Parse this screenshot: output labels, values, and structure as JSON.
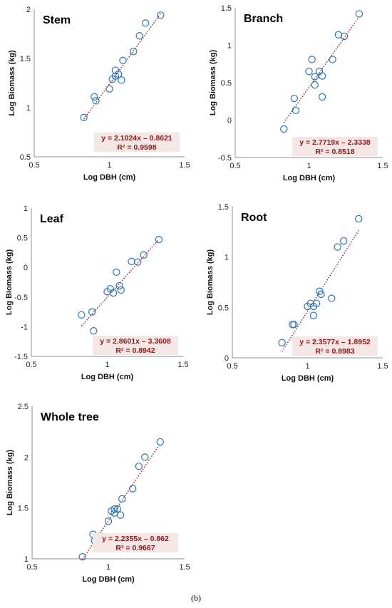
{
  "figure": {
    "caption": "(b)"
  },
  "colors": {
    "marker": "#2e75b6",
    "trendline": "#8b1a1a",
    "equation_text": "#8b1a1a",
    "equation_bg": "#f5e6e6",
    "axis": "#8c8c8c"
  },
  "chart_data": [
    {
      "type": "scatter",
      "title": "Stem",
      "xlabel": "Log DBH (cm)",
      "ylabel": "Log Biomass (kg)",
      "xlim": [
        0.5,
        1.5
      ],
      "ylim": [
        0.5,
        2
      ],
      "xticks": [
        "0.5",
        "1",
        "1.5"
      ],
      "yticks": [
        "0.5",
        "1",
        "1.5",
        "2"
      ],
      "grid": false,
      "trendline": {
        "slope": 2.1024,
        "intercept": -0.8621
      },
      "equation": "y = 2.1024x – 0.8621",
      "r2": "R² = 0.9598",
      "points": [
        {
          "x": 0.83,
          "y": 0.9
        },
        {
          "x": 0.9,
          "y": 1.11
        },
        {
          "x": 0.91,
          "y": 1.07
        },
        {
          "x": 1.0,
          "y": 1.19
        },
        {
          "x": 1.02,
          "y": 1.29
        },
        {
          "x": 1.04,
          "y": 1.32
        },
        {
          "x": 1.04,
          "y": 1.38
        },
        {
          "x": 1.06,
          "y": 1.34
        },
        {
          "x": 1.08,
          "y": 1.28
        },
        {
          "x": 1.09,
          "y": 1.48
        },
        {
          "x": 1.16,
          "y": 1.57
        },
        {
          "x": 1.2,
          "y": 1.73
        },
        {
          "x": 1.24,
          "y": 1.86
        },
        {
          "x": 1.34,
          "y": 1.94
        }
      ]
    },
    {
      "type": "scatter",
      "title": "Branch",
      "xlabel": "Log DBH (cm)",
      "ylabel": "Log Biomass (kg)",
      "xlim": [
        0.5,
        1.5
      ],
      "ylim": [
        -0.5,
        1.5
      ],
      "xticks": [
        "0.5",
        "1",
        "1.5"
      ],
      "yticks": [
        "-0.5",
        "0",
        "0.5",
        "1",
        "1.5"
      ],
      "grid": false,
      "trendline": {
        "slope": 2.7719,
        "intercept": -2.3338
      },
      "equation": "y = 2.7719x – 2.3338",
      "r2": "R² = 0.8518",
      "points": [
        {
          "x": 0.83,
          "y": -0.12
        },
        {
          "x": 0.9,
          "y": 0.29
        },
        {
          "x": 0.91,
          "y": 0.13
        },
        {
          "x": 1.0,
          "y": 0.65
        },
        {
          "x": 1.02,
          "y": 0.81
        },
        {
          "x": 1.04,
          "y": 0.58
        },
        {
          "x": 1.04,
          "y": 0.47
        },
        {
          "x": 1.07,
          "y": 0.65
        },
        {
          "x": 1.09,
          "y": 0.59
        },
        {
          "x": 1.09,
          "y": 0.31
        },
        {
          "x": 1.16,
          "y": 0.81
        },
        {
          "x": 1.2,
          "y": 1.14
        },
        {
          "x": 1.24,
          "y": 1.12
        },
        {
          "x": 1.34,
          "y": 1.42
        }
      ]
    },
    {
      "type": "scatter",
      "title": "Leaf",
      "xlabel": "Log DBH (cm)",
      "ylabel": "Log Biomass (kg)",
      "xlim": [
        0.5,
        1.5
      ],
      "ylim": [
        -1.5,
        1
      ],
      "xticks": [
        "0.5",
        "1",
        "1.5"
      ],
      "yticks": [
        "-1.5",
        "-1",
        "-0.5",
        "0",
        "0.5",
        "1"
      ],
      "grid": false,
      "trendline": {
        "slope": 2.8601,
        "intercept": -3.3608
      },
      "equation": "y = 2.8601x – 3.3608",
      "r2": "R² = 0.8942",
      "points": [
        {
          "x": 0.83,
          "y": -0.8
        },
        {
          "x": 0.9,
          "y": -0.75
        },
        {
          "x": 0.91,
          "y": -1.07
        },
        {
          "x": 1.0,
          "y": -0.41
        },
        {
          "x": 1.02,
          "y": -0.36
        },
        {
          "x": 1.04,
          "y": -0.43
        },
        {
          "x": 1.06,
          "y": -0.08
        },
        {
          "x": 1.08,
          "y": -0.31
        },
        {
          "x": 1.09,
          "y": -0.38
        },
        {
          "x": 1.16,
          "y": 0.1
        },
        {
          "x": 1.2,
          "y": 0.09
        },
        {
          "x": 1.24,
          "y": 0.21
        },
        {
          "x": 1.34,
          "y": 0.47
        }
      ]
    },
    {
      "type": "scatter",
      "title": "Root",
      "xlabel": "Log DBH (cm)",
      "ylabel": "Log Biomass (kg)",
      "xlim": [
        0.5,
        1.5
      ],
      "ylim": [
        0,
        1.5
      ],
      "xticks": [
        "0.5",
        "1",
        "1.5"
      ],
      "yticks": [
        "0",
        "0.5",
        "1",
        "1.5"
      ],
      "grid": false,
      "trendline": {
        "slope": 2.3577,
        "intercept": -1.8952
      },
      "equation": "y = 2.3577x – 1.8952",
      "r2": "R² = 0.8983",
      "points": [
        {
          "x": 0.83,
          "y": 0.15
        },
        {
          "x": 0.9,
          "y": 0.33
        },
        {
          "x": 0.91,
          "y": 0.33
        },
        {
          "x": 1.0,
          "y": 0.51
        },
        {
          "x": 1.02,
          "y": 0.54
        },
        {
          "x": 1.04,
          "y": 0.51
        },
        {
          "x": 1.04,
          "y": 0.42
        },
        {
          "x": 1.06,
          "y": 0.54
        },
        {
          "x": 1.08,
          "y": 0.66
        },
        {
          "x": 1.09,
          "y": 0.63
        },
        {
          "x": 1.16,
          "y": 0.59
        },
        {
          "x": 1.2,
          "y": 1.1
        },
        {
          "x": 1.24,
          "y": 1.16
        },
        {
          "x": 1.34,
          "y": 1.38
        }
      ]
    },
    {
      "type": "scatter",
      "title": "Whole tree",
      "xlabel": "Log DBH (cm)",
      "ylabel": "Log Biomass (kg)",
      "xlim": [
        0.5,
        1.5
      ],
      "ylim": [
        1,
        2.5
      ],
      "xticks": [
        "0.5",
        "1",
        "1.5"
      ],
      "yticks": [
        "1",
        "1.5",
        "2",
        "2.5"
      ],
      "grid": false,
      "trendline": {
        "slope": 2.2355,
        "intercept": -0.862
      },
      "equation": "y = 2.2355x – 0.862",
      "r2": "R² = 0.9667",
      "points": [
        {
          "x": 0.83,
          "y": 1.02
        },
        {
          "x": 0.9,
          "y": 1.24
        },
        {
          "x": 0.91,
          "y": 1.18
        },
        {
          "x": 1.0,
          "y": 1.37
        },
        {
          "x": 1.02,
          "y": 1.47
        },
        {
          "x": 1.04,
          "y": 1.49
        },
        {
          "x": 1.04,
          "y": 1.45
        },
        {
          "x": 1.06,
          "y": 1.49
        },
        {
          "x": 1.08,
          "y": 1.43
        },
        {
          "x": 1.09,
          "y": 1.59
        },
        {
          "x": 1.16,
          "y": 1.69
        },
        {
          "x": 1.2,
          "y": 1.91
        },
        {
          "x": 1.24,
          "y": 2.0
        },
        {
          "x": 1.34,
          "y": 2.15
        }
      ]
    }
  ]
}
